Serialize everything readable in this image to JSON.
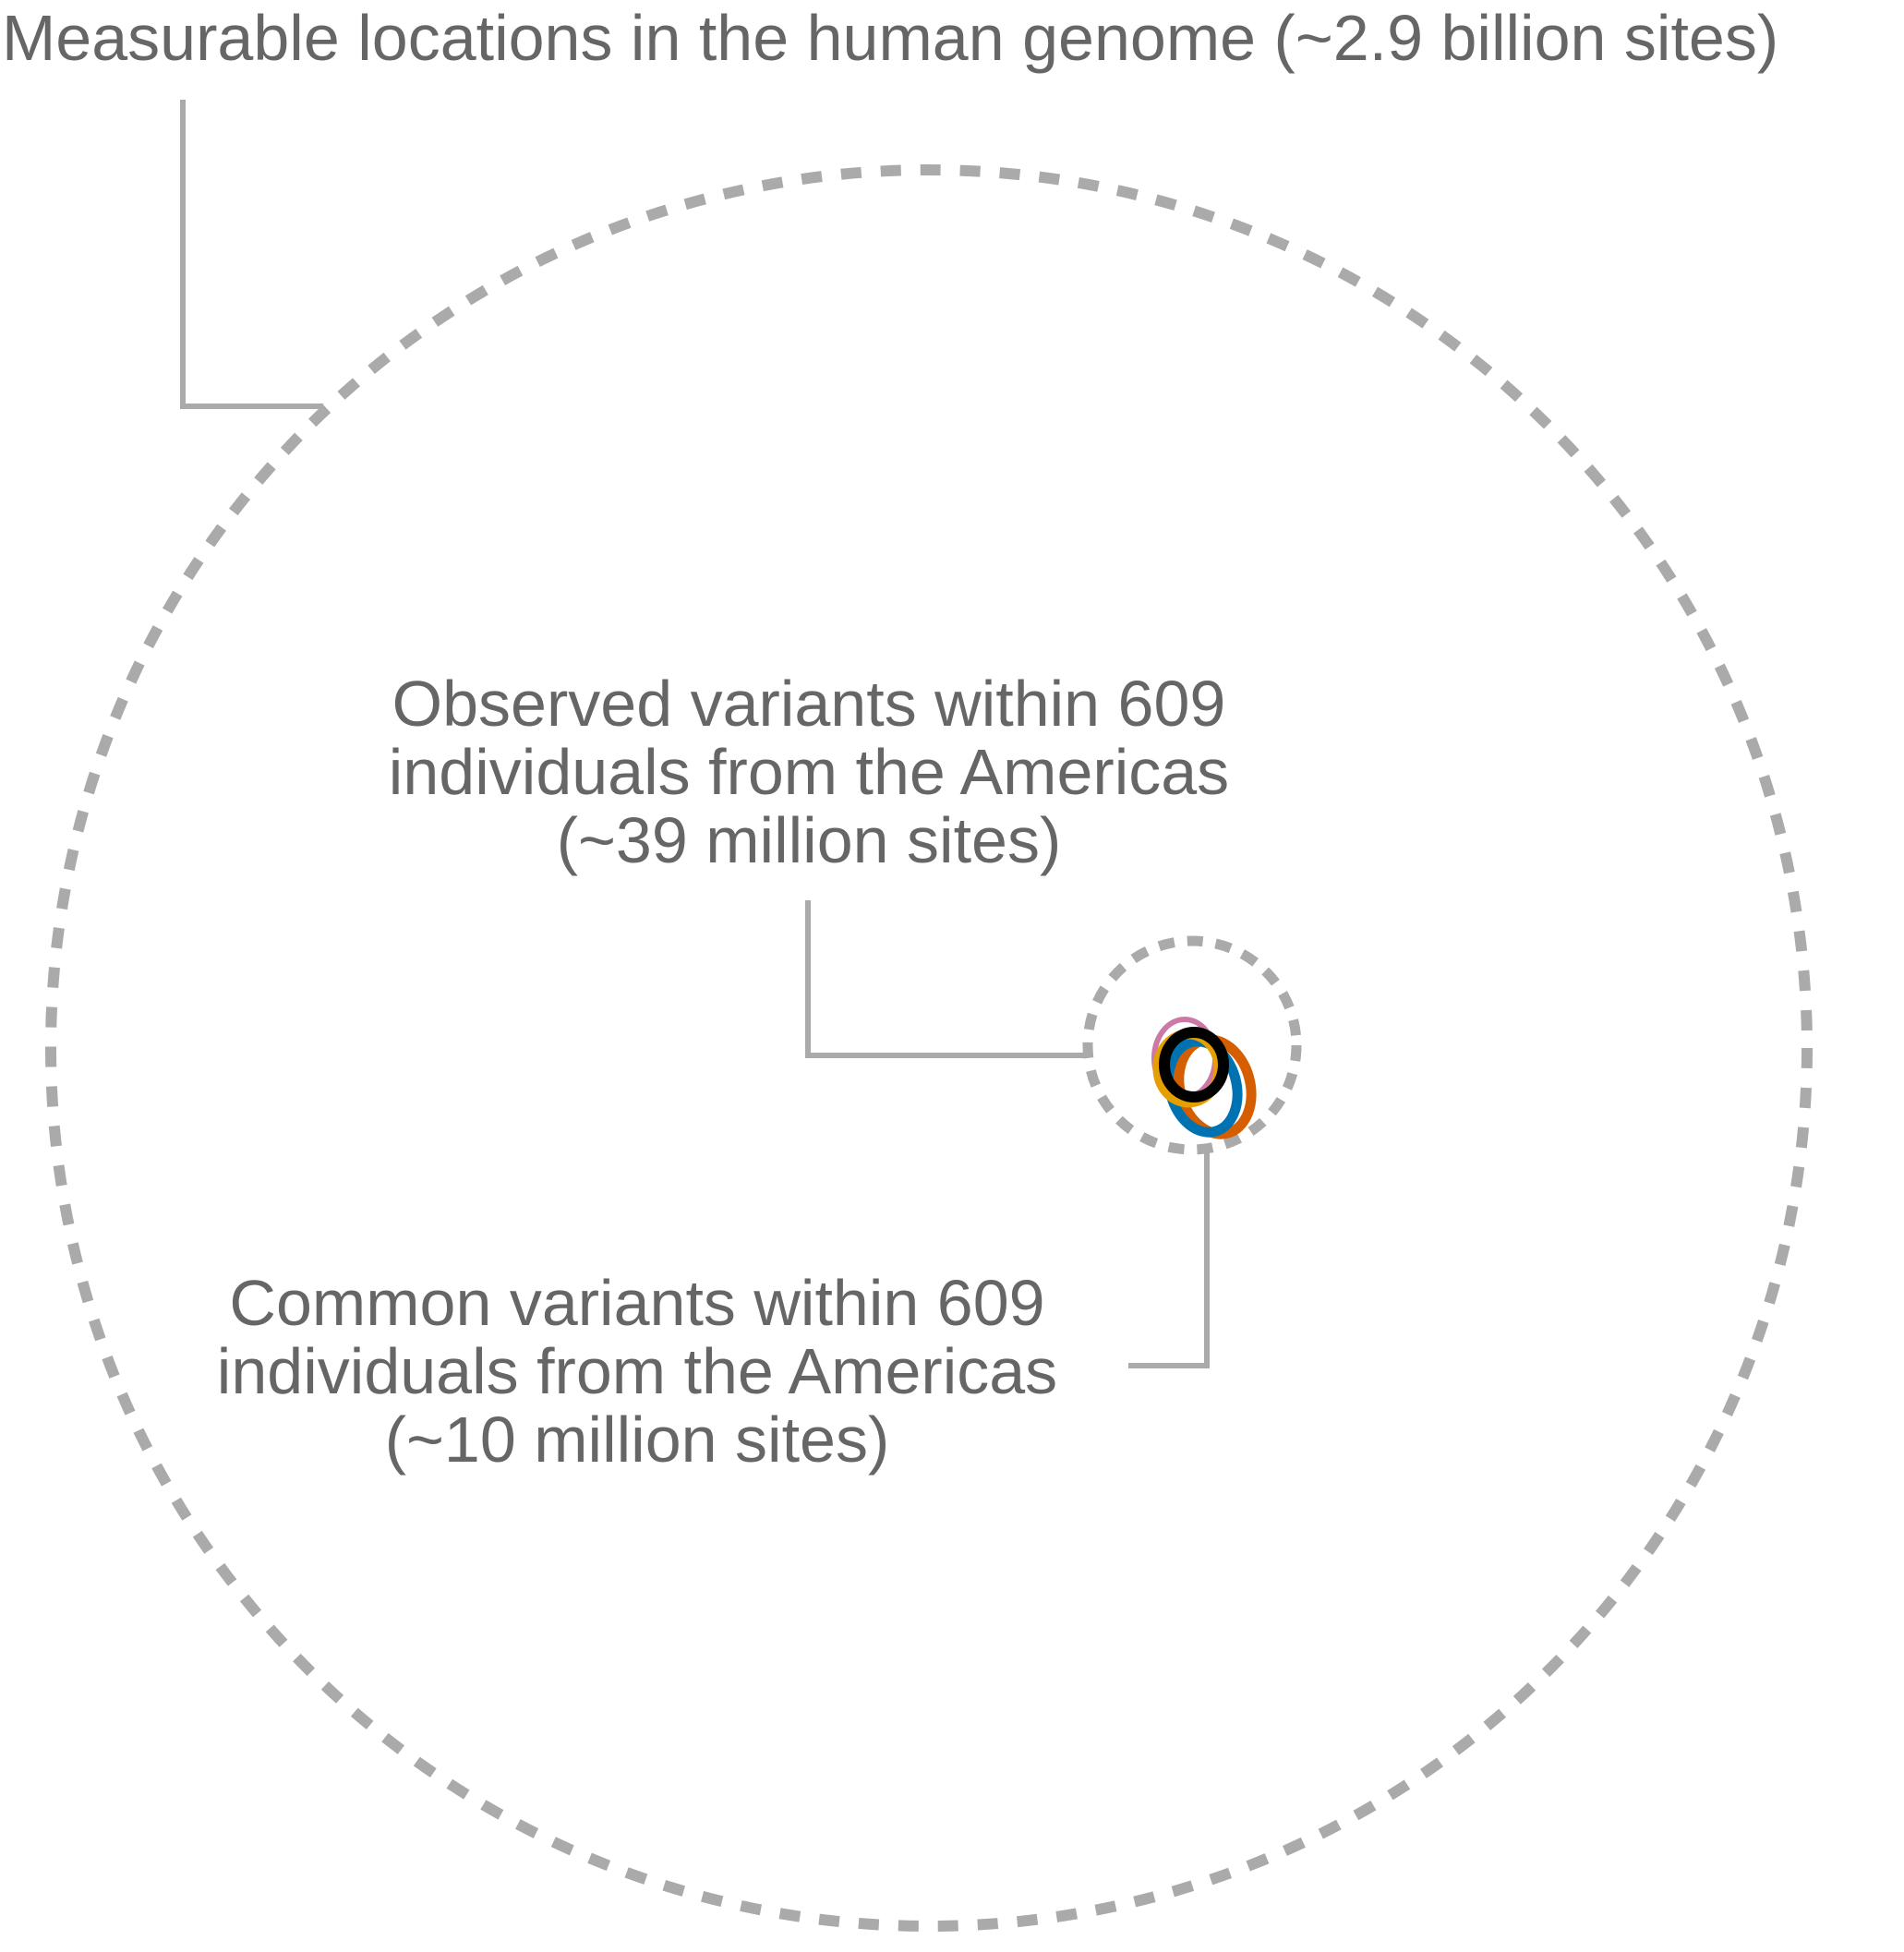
{
  "diagram": {
    "labels": {
      "genome": "Measurable locations in the human genome (~2.9 billion sites)",
      "observed": [
        "Observed variants within 609",
        "individuals from the Americas",
        "(~39 million sites)"
      ],
      "common": [
        "Common variants within 609",
        "individuals from the Americas",
        "(~10 million sites)"
      ]
    },
    "colors": {
      "text": "#666666",
      "dashed_circle": "#aaaaaa",
      "leader_line": "#aaaaaa",
      "ring_pink": "#cc79a7",
      "ring_orange": "#d55e00",
      "ring_blue": "#0072b2",
      "ring_yellow": "#e69f00",
      "ring_black": "#000000"
    }
  }
}
